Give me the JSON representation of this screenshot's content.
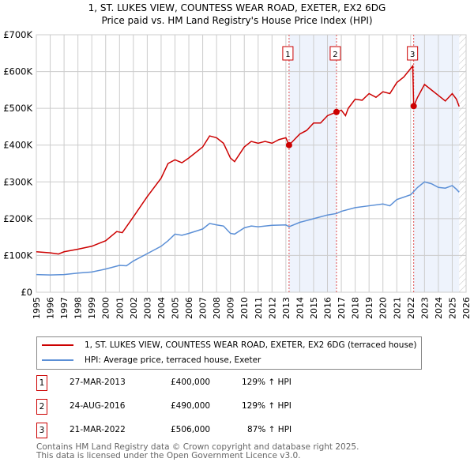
{
  "chart_data": {
    "type": "line",
    "title": "1, ST. LUKES VIEW, COUNTESS WEAR ROAD, EXETER, EX2 6DG",
    "subtitle": "Price paid vs. HM Land Registry's House Price Index (HPI)",
    "xlim": [
      1995,
      2026
    ],
    "ylim": [
      0,
      700000
    ],
    "x_ticks": [
      "1995",
      "1996",
      "1997",
      "1998",
      "1999",
      "2000",
      "2001",
      "2002",
      "2003",
      "2004",
      "2005",
      "2006",
      "2007",
      "2008",
      "2009",
      "2010",
      "2011",
      "2012",
      "2013",
      "2014",
      "2015",
      "2016",
      "2017",
      "2018",
      "2019",
      "2020",
      "2021",
      "2022",
      "2023",
      "2024",
      "2025",
      "2026"
    ],
    "y_ticks": [
      {
        "v": 0,
        "label": "£0"
      },
      {
        "v": 100000,
        "label": "£100K"
      },
      {
        "v": 200000,
        "label": "£200K"
      },
      {
        "v": 300000,
        "label": "£300K"
      },
      {
        "v": 400000,
        "label": "£400K"
      },
      {
        "v": 500000,
        "label": "£500K"
      },
      {
        "v": 600000,
        "label": "£600K"
      },
      {
        "v": 700000,
        "label": "£700K"
      }
    ],
    "grid": true,
    "series": [
      {
        "name": "1, ST. LUKES VIEW, COUNTESS WEAR ROAD, EXETER, EX2 6DG (terraced house)",
        "color": "#cc0000",
        "points": [
          [
            1995,
            110
          ],
          [
            1996,
            107
          ],
          [
            1996.6,
            104
          ],
          [
            1997,
            110
          ],
          [
            1998,
            117
          ],
          [
            1999,
            125
          ],
          [
            2000,
            140
          ],
          [
            2000.8,
            165
          ],
          [
            2001.2,
            162
          ],
          [
            2002,
            205
          ],
          [
            2003,
            260
          ],
          [
            2004,
            310
          ],
          [
            2004.5,
            350
          ],
          [
            2005,
            360
          ],
          [
            2005.5,
            352
          ],
          [
            2006,
            365
          ],
          [
            2007,
            395
          ],
          [
            2007.5,
            425
          ],
          [
            2008,
            420
          ],
          [
            2008.5,
            405
          ],
          [
            2009,
            365
          ],
          [
            2009.3,
            355
          ],
          [
            2010,
            395
          ],
          [
            2010.5,
            410
          ],
          [
            2011,
            405
          ],
          [
            2011.5,
            410
          ],
          [
            2012,
            405
          ],
          [
            2012.5,
            415
          ],
          [
            2013,
            420
          ],
          [
            2013.23,
            400
          ],
          [
            2014,
            430
          ],
          [
            2014.5,
            440
          ],
          [
            2015,
            460
          ],
          [
            2015.5,
            460
          ],
          [
            2016,
            480
          ],
          [
            2016.65,
            490
          ],
          [
            2017,
            495
          ],
          [
            2017.3,
            480
          ],
          [
            2017.5,
            500
          ],
          [
            2018,
            525
          ],
          [
            2018.5,
            522
          ],
          [
            2019,
            540
          ],
          [
            2019.5,
            530
          ],
          [
            2020,
            545
          ],
          [
            2020.5,
            540
          ],
          [
            2021,
            570
          ],
          [
            2021.5,
            585
          ],
          [
            2022.15,
            615
          ],
          [
            2022.22,
            506
          ],
          [
            2022.5,
            530
          ],
          [
            2023,
            565
          ],
          [
            2023.5,
            550
          ],
          [
            2024,
            535
          ],
          [
            2024.5,
            520
          ],
          [
            2025,
            540
          ],
          [
            2025.3,
            525
          ],
          [
            2025.5,
            505
          ]
        ]
      },
      {
        "name": "HPI: Average price, terraced house, Exeter",
        "color": "#5b8fd6",
        "points": [
          [
            1995,
            48
          ],
          [
            1996,
            47
          ],
          [
            1997,
            48
          ],
          [
            1998,
            52
          ],
          [
            1999,
            55
          ],
          [
            2000,
            63
          ],
          [
            2001,
            73
          ],
          [
            2001.5,
            72
          ],
          [
            2002,
            85
          ],
          [
            2003,
            105
          ],
          [
            2004,
            125
          ],
          [
            2004.5,
            140
          ],
          [
            2005,
            158
          ],
          [
            2005.5,
            155
          ],
          [
            2006,
            160
          ],
          [
            2007,
            172
          ],
          [
            2007.5,
            187
          ],
          [
            2008,
            183
          ],
          [
            2008.5,
            180
          ],
          [
            2009,
            160
          ],
          [
            2009.3,
            158
          ],
          [
            2010,
            175
          ],
          [
            2010.5,
            180
          ],
          [
            2011,
            178
          ],
          [
            2012,
            182
          ],
          [
            2013,
            183
          ],
          [
            2013.23,
            178
          ],
          [
            2014,
            190
          ],
          [
            2015,
            200
          ],
          [
            2016,
            210
          ],
          [
            2016.65,
            214
          ],
          [
            2017,
            220
          ],
          [
            2018,
            230
          ],
          [
            2019,
            235
          ],
          [
            2020,
            240
          ],
          [
            2020.5,
            235
          ],
          [
            2021,
            252
          ],
          [
            2022,
            265
          ],
          [
            2022.5,
            285
          ],
          [
            2023,
            300
          ],
          [
            2023.5,
            295
          ],
          [
            2024,
            285
          ],
          [
            2024.5,
            283
          ],
          [
            2025,
            290
          ],
          [
            2025.3,
            280
          ],
          [
            2025.5,
            272
          ]
        ]
      }
    ],
    "y_unit_multiplier": 1000,
    "sales": [
      {
        "id": "1",
        "x": 2013.23,
        "price": 400000,
        "date": "27-MAR-2013",
        "price_label": "£400,000",
        "hpi": "129% ↑ HPI"
      },
      {
        "id": "2",
        "x": 2016.65,
        "price": 490000,
        "date": "24-AUG-2016",
        "price_label": "£490,000",
        "hpi": "129% ↑ HPI"
      },
      {
        "id": "3",
        "x": 2022.22,
        "price": 506000,
        "date": "21-MAR-2022",
        "price_label": "£506,000",
        "hpi": "87% ↑ HPI"
      }
    ],
    "shaded_ranges": [
      [
        2013.23,
        2016.65
      ],
      [
        2022.22,
        2025.5
      ]
    ],
    "forecast_start": 2025.5,
    "legend_placement": "below"
  },
  "footer": {
    "line1": "Contains HM Land Registry data © Crown copyright and database right 2025.",
    "line2": "This data is licensed under the Open Government Licence v3.0."
  }
}
